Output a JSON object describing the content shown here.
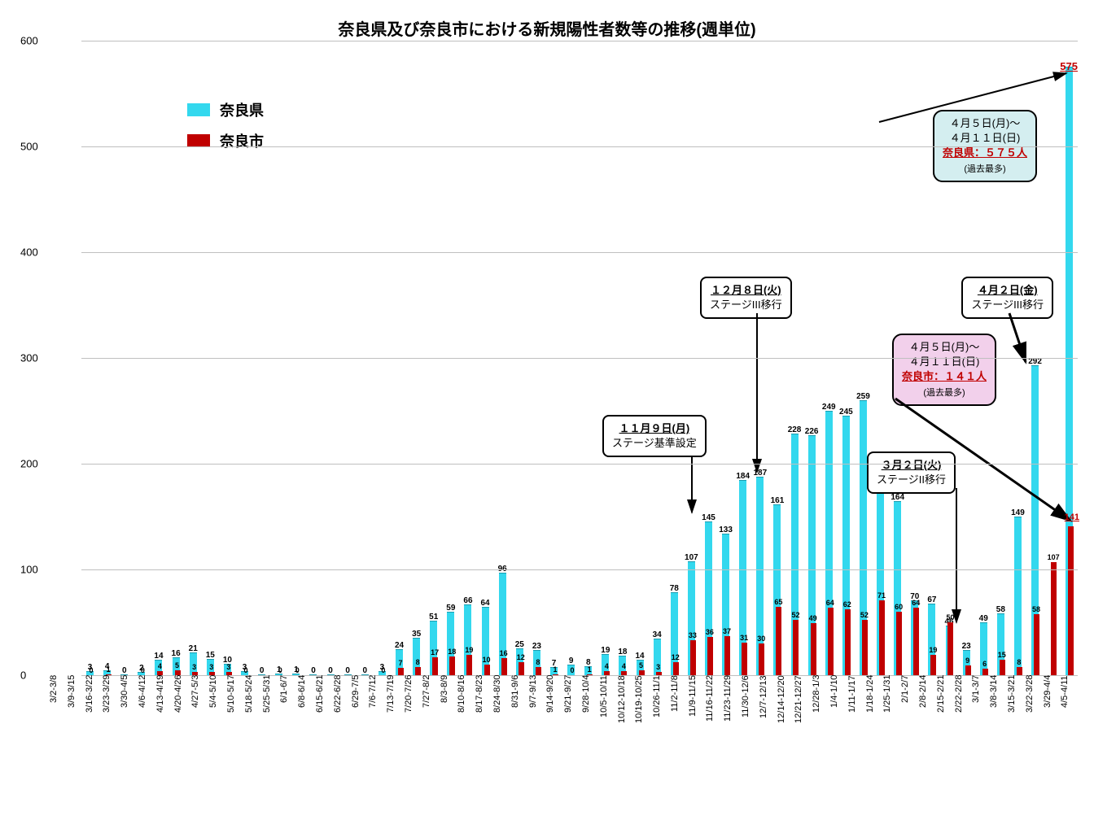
{
  "title": "奈良県及び奈良市における新規陽性者数等の推移(週単位)",
  "legend": {
    "pref": {
      "label": "奈良県",
      "color": "#33d8ee"
    },
    "city": {
      "label": "奈良市",
      "color": "#c00000"
    }
  },
  "axis": {
    "ymax": 600,
    "yticks": [
      0,
      100,
      200,
      300,
      400,
      500,
      600
    ],
    "grid_color": "#bfbfbf",
    "background_color": "#ffffff"
  },
  "weeks": [
    {
      "label": "3/2-3/8",
      "pref": 3,
      "city": 0
    },
    {
      "label": "3/9-3/15",
      "pref": 4,
      "city": 1
    },
    {
      "label": "3/16-3/22",
      "pref": 0,
      "city": 0
    },
    {
      "label": "3/23-3/29",
      "pref": 2,
      "city": 0
    },
    {
      "label": "3/30-4/5",
      "pref": 14,
      "city": 4
    },
    {
      "label": "4/6-4/12",
      "pref": 16,
      "city": 5
    },
    {
      "label": "4/13-4/19",
      "pref": 21,
      "city": 3
    },
    {
      "label": "4/20-4/26",
      "pref": 15,
      "city": 3
    },
    {
      "label": "4/27-5/3",
      "pref": 10,
      "city": 3
    },
    {
      "label": "5/4-5/10",
      "pref": 3,
      "city": 0
    },
    {
      "label": "5/10-5/17",
      "pref": 0,
      "city": 0
    },
    {
      "label": "5/18-5/24",
      "pref": 1,
      "city": 0
    },
    {
      "label": "5/25-5/31",
      "pref": 1,
      "city": 0
    },
    {
      "label": "6/1-6/7",
      "pref": 0,
      "city": 0
    },
    {
      "label": "6/8-6/14",
      "pref": 0,
      "city": 0
    },
    {
      "label": "6/15-6/21",
      "pref": 0,
      "city": 0
    },
    {
      "label": "6/22-6/28",
      "pref": 0,
      "city": 0
    },
    {
      "label": "6/29-7/5",
      "pref": 3,
      "city": 0
    },
    {
      "label": "7/6-7/12",
      "pref": 24,
      "city": 7
    },
    {
      "label": "7/13-7/19",
      "pref": 35,
      "city": 8
    },
    {
      "label": "7/20-7/26",
      "pref": 51,
      "city": 17
    },
    {
      "label": "7/27-8/2",
      "pref": 59,
      "city": 18
    },
    {
      "label": "8/3-8/9",
      "pref": 66,
      "city": 19
    },
    {
      "label": "8/10-8/16",
      "pref": 64,
      "city": 10
    },
    {
      "label": "8/17-8/23",
      "pref": 96,
      "city": 16
    },
    {
      "label": "8/24-8/30",
      "pref": 25,
      "city": 12
    },
    {
      "label": "8/31-9/6",
      "pref": 23,
      "city": 8
    },
    {
      "label": "9/7-9/13",
      "pref": 7,
      "city": 1
    },
    {
      "label": "9/14-9/20",
      "pref": 9,
      "city": 0
    },
    {
      "label": "9/21-9/27",
      "pref": 8,
      "city": 1
    },
    {
      "label": "9/28-10/4",
      "pref": 19,
      "city": 4
    },
    {
      "label": "10/5-10/11",
      "pref": 18,
      "city": 4
    },
    {
      "label": "10/12-10/18",
      "pref": 14,
      "city": 5
    },
    {
      "label": "10/19-10/25",
      "pref": 34,
      "city": 3
    },
    {
      "label": "10/26-11/1",
      "pref": 78,
      "city": 12
    },
    {
      "label": "11/2-11/8",
      "pref": 107,
      "city": 33
    },
    {
      "label": "11/9-11/15",
      "pref": 145,
      "city": 36
    },
    {
      "label": "11/16-11/22",
      "pref": 133,
      "city": 37
    },
    {
      "label": "11/23-11/29",
      "pref": 184,
      "city": 31
    },
    {
      "label": "11/30-12/6",
      "pref": 187,
      "city": 30
    },
    {
      "label": "12/7-12/13",
      "pref": 161,
      "city": 65
    },
    {
      "label": "12/14-12/20",
      "pref": 228,
      "city": 52
    },
    {
      "label": "12/21-12/27",
      "pref": 226,
      "city": 49
    },
    {
      "label": "12/28-1/3",
      "pref": 249,
      "city": 64
    },
    {
      "label": "1/4-1/10",
      "pref": 245,
      "city": 62
    },
    {
      "label": "1/11-1/17",
      "pref": 259,
      "city": 52
    },
    {
      "label": "1/18-1/24",
      "pref": 173,
      "city": 71
    },
    {
      "label": "1/25-1/31",
      "pref": 164,
      "city": 60
    },
    {
      "label": "2/1-2/7",
      "pref": 70,
      "city": 64
    },
    {
      "label": "2/8-2/14",
      "pref": 67,
      "city": 19
    },
    {
      "label": "2/15-2/21",
      "pref": 46,
      "city": 50
    },
    {
      "label": "2/22-2/28",
      "pref": 23,
      "city": 9
    },
    {
      "label": "3/1-3/7",
      "pref": 49,
      "city": 6
    },
    {
      "label": "3/8-3/14",
      "pref": 58,
      "city": 15
    },
    {
      "label": "3/15-3/21",
      "pref": 149,
      "city": 8
    },
    {
      "label": "3/22-3/28",
      "pref": 292,
      "city": 58
    },
    {
      "label": "3/29-4/4",
      "pref": 575,
      "city": 107,
      "pref_hidden": true
    },
    {
      "label": "4/5-4/11",
      "pref": 575,
      "city": 141,
      "peak": true
    }
  ],
  "callouts": {
    "pref_peak": {
      "line1": "４月５日(月)～",
      "line2": "４月１１日(日)",
      "hl": "奈良県：５７５人",
      "sub": "(過去最多)",
      "bg": "#d4eef0"
    },
    "city_peak": {
      "line1": "４月５日(月)～",
      "line2": "４月１１日(日)",
      "hl": "奈良市：１４１人",
      "sub": "(過去最多)",
      "bg": "#f2d0eb"
    },
    "nov9": {
      "date": "１１月９日(月)",
      "text": "ステージ基準設定"
    },
    "dec8": {
      "date": "１２月８日(火)",
      "text": "ステージIII移行"
    },
    "mar2": {
      "date": "３月２日(火)",
      "text": "ステージII移行"
    },
    "apr2": {
      "date": "４月２日(金)",
      "text": "ステージIII移行"
    }
  },
  "peak_labels": {
    "pref": "575",
    "city": "141"
  }
}
